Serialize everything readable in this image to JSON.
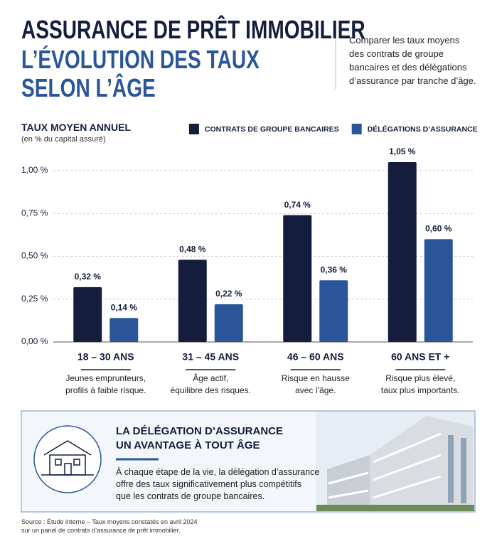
{
  "header": {
    "title": "ASSURANCE DE PRÊT IMMOBILIER",
    "subtitle": "L’ÉVOLUTION DES TAUX\nSELON L’ÂGE",
    "intro": "Comparer les taux moyens\ndes contrats de groupe\nbancaires et des délégations\nd’assurance par tranche d’âge."
  },
  "chart_data": {
    "type": "bar",
    "title": "TAUX MOYEN ANNUEL",
    "subtitle": "(en % du capital assuré)",
    "categories": [
      "18 – 30 ANS",
      "31 – 45 ANS",
      "46 – 60 ANS",
      "60 ANS ET +"
    ],
    "category_notes": [
      "Jeunes emprunteurs,\nprofils à faible risque.",
      "Âge actif,\néquilibre des risques.",
      "Risque en hausse\navec l’âge.",
      "Risque plus élevé,\ntaux plus importants."
    ],
    "series": [
      {
        "name": "CONTRATS DE GROUPE BANCAIRES",
        "color": "#141e3c",
        "values": [
          0.32,
          0.48,
          0.74,
          1.05
        ],
        "value_labels": [
          "0,32 %",
          "0,48 %",
          "0,74 %",
          "1,05 %"
        ]
      },
      {
        "name": "DÉLÉGATIONS D’ASSURANCE",
        "color": "#2a5699",
        "values": [
          0.14,
          0.22,
          0.36,
          0.6
        ],
        "value_labels": [
          "0,14 %",
          "0,22 %",
          "0,36 %",
          "0,60 %"
        ]
      }
    ],
    "ylim": [
      0,
      1.1
    ],
    "yticks": [
      {
        "value": 0,
        "label": "0,00 %"
      },
      {
        "value": 0.25,
        "label": "0,25 %"
      },
      {
        "value": 0.5,
        "label": "0,50 %"
      },
      {
        "value": 0.75,
        "label": "0,75 %"
      },
      {
        "value": 1,
        "label": "1,00 %"
      }
    ],
    "grid": true,
    "legend": "top-right"
  },
  "callout": {
    "title": "LA DÉLÉGATION D’ASSURANCE\nUN AVANTAGE À TOUT ÂGE",
    "text": "À chaque étape de la vie, la délégation d’assurance\noffre des taux significativement plus compétitifs\nque les contrats de groupe bancaires."
  },
  "source": "Source : Étude interne – Taux moyens constatés en avril 2024\nsur un panel de contrats d’assurance de prêt immobilier."
}
